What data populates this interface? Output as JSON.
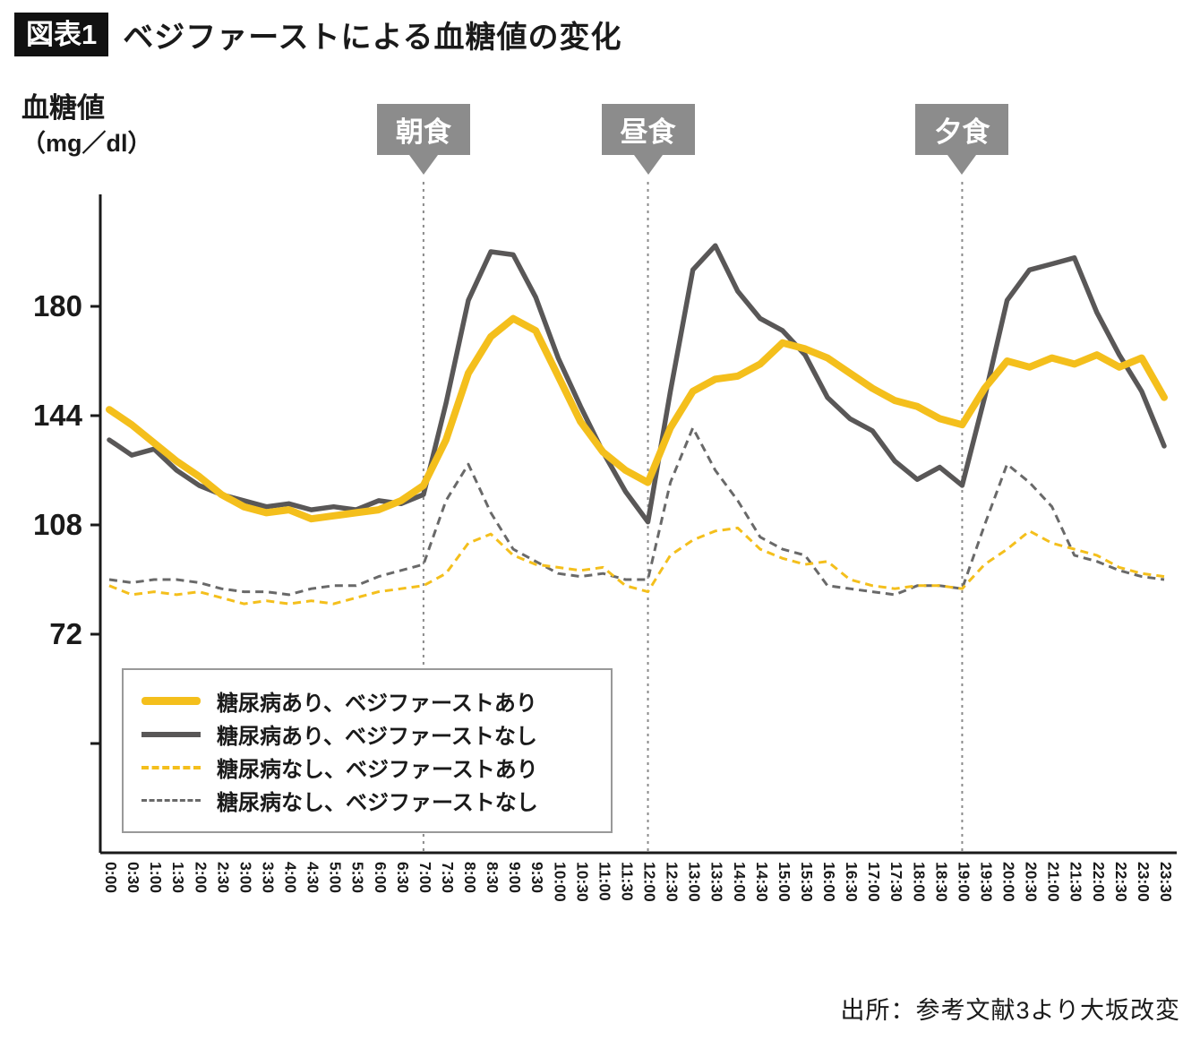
{
  "header": {
    "badge": "図表1",
    "title": "ベジファーストによる血糖値の変化"
  },
  "footer": {
    "source": "出所：参考文献3より大坂改変"
  },
  "chart_data": {
    "type": "line",
    "title": "ベジファーストによる血糖値の変化",
    "ylabel_line1": "血糖値",
    "ylabel_line2": "（mg／dl）",
    "ylim": [
      0,
      216
    ],
    "yticks": [
      180,
      144,
      108,
      72
    ],
    "yticks_unlabeled": [
      36
    ],
    "grid": false,
    "legend_position": "bottom-left-inside",
    "categories": [
      "0:00",
      "0:30",
      "1:00",
      "1:30",
      "2:00",
      "2:30",
      "3:00",
      "3:30",
      "4:00",
      "4:30",
      "5:00",
      "5:30",
      "6:00",
      "6:30",
      "7:00",
      "7:30",
      "8:00",
      "8:30",
      "9:00",
      "9:30",
      "10:00",
      "10:30",
      "11:00",
      "11:30",
      "12:00",
      "12:30",
      "13:00",
      "13:30",
      "14:00",
      "14:30",
      "15:00",
      "15:30",
      "16:00",
      "16:30",
      "17:00",
      "17:30",
      "18:00",
      "18:30",
      "19:00",
      "19:30",
      "20:00",
      "20:30",
      "21:00",
      "21:30",
      "22:00",
      "22:30",
      "23:00",
      "23:30"
    ],
    "meal_markers": [
      {
        "label": "朝食",
        "time": "7:00",
        "index": 14
      },
      {
        "label": "昼食",
        "time": "12:00",
        "index": 24
      },
      {
        "label": "夕食",
        "time": "19:00",
        "index": 38
      }
    ],
    "series": [
      {
        "name": "糖尿病あり、ベジファーストあり",
        "color": "#F4BF1C",
        "style": "solid",
        "width": 8,
        "values": [
          146,
          141,
          135,
          129,
          124,
          118,
          114,
          112,
          113,
          110,
          111,
          112,
          113,
          116,
          121,
          136,
          158,
          170,
          176,
          172,
          157,
          142,
          132,
          126,
          122,
          140,
          152,
          156,
          157,
          161,
          168,
          166,
          163,
          158,
          153,
          149,
          147,
          143,
          141,
          153,
          162,
          160,
          163,
          161,
          164,
          160,
          163,
          150
        ]
      },
      {
        "name": "糖尿病あり、ベジファーストなし",
        "color": "#595757",
        "style": "solid",
        "width": 5.5,
        "values": [
          136,
          131,
          133,
          126,
          121,
          118,
          116,
          114,
          115,
          113,
          114,
          113,
          116,
          115,
          118,
          148,
          182,
          198,
          197,
          183,
          163,
          147,
          132,
          119,
          109,
          152,
          192,
          200,
          185,
          176,
          172,
          164,
          150,
          143,
          139,
          129,
          123,
          127,
          121,
          150,
          182,
          192,
          194,
          196,
          178,
          164,
          152,
          134
        ]
      },
      {
        "name": "糖尿病なし、ベジファーストあり",
        "color": "#F4BF1C",
        "style": "dashed",
        "width": 3,
        "values": [
          88,
          85,
          86,
          85,
          86,
          84,
          82,
          83,
          82,
          83,
          82,
          84,
          86,
          87,
          88,
          92,
          102,
          105,
          98,
          95,
          94,
          93,
          94,
          88,
          86,
          98,
          103,
          106,
          107,
          100,
          97,
          95,
          96,
          90,
          88,
          87,
          88,
          88,
          87,
          95,
          100,
          106,
          102,
          100,
          98,
          94,
          92,
          91
        ]
      },
      {
        "name": "糖尿病なし、ベジファーストなし",
        "color": "#696969",
        "style": "dashed",
        "width": 3,
        "values": [
          90,
          89,
          90,
          90,
          89,
          87,
          86,
          86,
          85,
          87,
          88,
          88,
          91,
          93,
          95,
          116,
          128,
          112,
          100,
          96,
          92,
          91,
          92,
          90,
          90,
          122,
          140,
          126,
          116,
          104,
          100,
          98,
          88,
          87,
          86,
          85,
          88,
          88,
          87,
          108,
          128,
          122,
          114,
          98,
          96,
          93,
          91,
          90
        ]
      }
    ]
  }
}
